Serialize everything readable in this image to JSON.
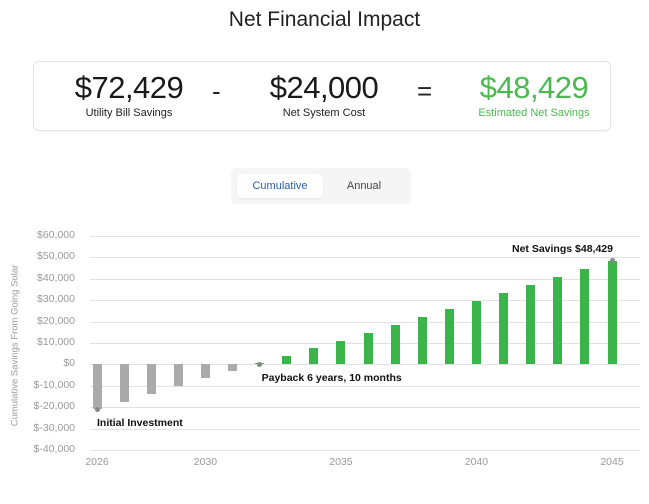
{
  "page": {
    "title": "Net Financial Impact"
  },
  "summary": {
    "utility_savings": {
      "value": "$72,429",
      "label": "Utility Bill Savings"
    },
    "operator_minus": "-",
    "net_cost": {
      "value": "$24,000",
      "label": "Net System Cost"
    },
    "operator_equals": "=",
    "net_savings": {
      "value": "$48,429",
      "label": "Estimated Net Savings",
      "color": "#4cb84f"
    }
  },
  "toggle": {
    "options": [
      {
        "label": "Cumulative",
        "active": true
      },
      {
        "label": "Annual",
        "active": false
      }
    ]
  },
  "colors": {
    "positive_bar": "#3bb54a",
    "negative_bar": "#aaaaaa",
    "accent_blue": "#2a5db0"
  },
  "chart_data": {
    "type": "bar",
    "title": "",
    "xlabel": "",
    "ylabel": "Cumulative Savings From Going Solar",
    "ylim": [
      -40000,
      60000
    ],
    "yticks": [
      "$60,000",
      "$50,000",
      "$40,000",
      "$30,000",
      "$20,000",
      "$10,000",
      "$0",
      "$-10,000",
      "$-20,000",
      "$-30,000",
      "$-40,000"
    ],
    "xticks": [
      "2026",
      "2030",
      "2035",
      "2040",
      "2045"
    ],
    "grid": true,
    "categories": [
      "2026",
      "2027",
      "2028",
      "2029",
      "2030",
      "2031",
      "2032",
      "2033",
      "2034",
      "2035",
      "2036",
      "2037",
      "2038",
      "2039",
      "2040",
      "2041",
      "2042",
      "2043",
      "2044",
      "2045"
    ],
    "values": [
      -21000,
      -17500,
      -13800,
      -10000,
      -6300,
      -3000,
      500,
      4000,
      7500,
      11000,
      14800,
      18300,
      22000,
      25700,
      29500,
      33200,
      36900,
      40700,
      44500,
      48429
    ],
    "annotations": [
      {
        "text": "Initial Investment",
        "x": "2026"
      },
      {
        "text": "Payback 6 years, 10 months",
        "x": "2032"
      },
      {
        "text": "Net Savings $48,429",
        "x": "2045"
      }
    ]
  }
}
